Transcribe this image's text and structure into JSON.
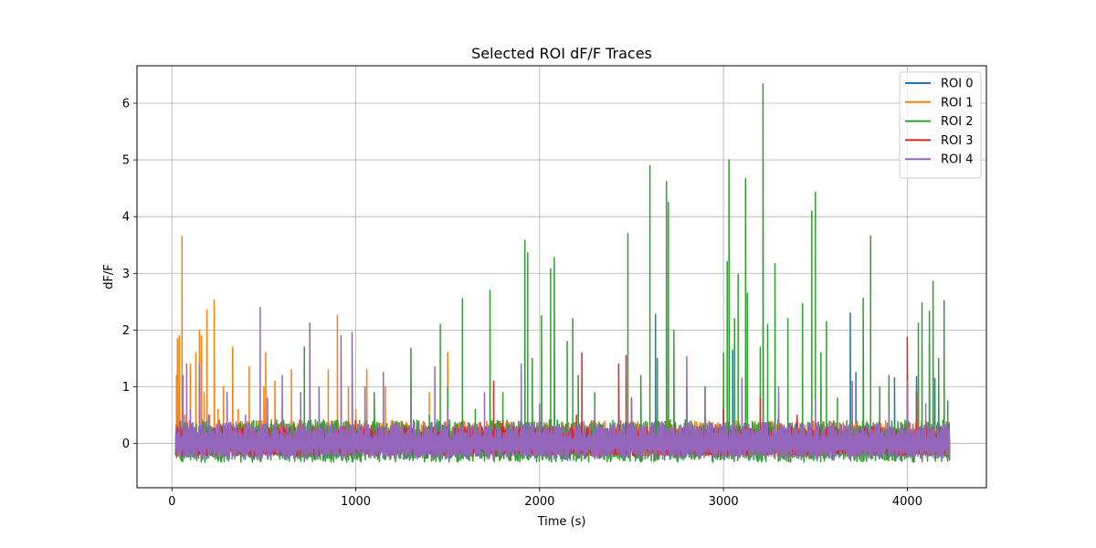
{
  "chart_data": {
    "type": "line",
    "title": "Selected ROI dF/F Traces",
    "xlabel": "Time (s)",
    "ylabel": "dF/F",
    "xlim": [
      -190,
      4430
    ],
    "ylim": [
      -0.78,
      6.66
    ],
    "xticks": [
      0,
      1000,
      2000,
      3000,
      4000
    ],
    "xtick_labels": [
      "0",
      "1000",
      "2000",
      "3000",
      "4000"
    ],
    "yticks": [
      0,
      1,
      2,
      3,
      4,
      5,
      6
    ],
    "ytick_labels": [
      "0",
      "1",
      "2",
      "3",
      "4",
      "5",
      "6"
    ],
    "grid": true,
    "legend_position": "top-right",
    "series": [
      {
        "name": "ROI 0",
        "color": "#1f77b4",
        "points": [
          [
            20,
            0.05
          ],
          [
            120,
            0.2
          ],
          [
            300,
            -0.1
          ],
          [
            500,
            0.15
          ],
          [
            800,
            0.1
          ],
          [
            1100,
            0.2
          ],
          [
            1400,
            0.3
          ],
          [
            1700,
            0.1
          ],
          [
            2000,
            0.25
          ],
          [
            2300,
            0.2
          ],
          [
            2500,
            0.3
          ],
          [
            2630,
            2.28
          ],
          [
            2700,
            0.4
          ],
          [
            2900,
            0.5
          ],
          [
            3000,
            0.74
          ],
          [
            3050,
            1.65
          ],
          [
            3100,
            0.3
          ],
          [
            3300,
            0.6
          ],
          [
            3500,
            0.5
          ],
          [
            3600,
            0.4
          ],
          [
            3690,
            2.3
          ],
          [
            3720,
            1.25
          ],
          [
            3800,
            0.5
          ],
          [
            3930,
            1.16
          ],
          [
            4000,
            0.6
          ],
          [
            4050,
            1.18
          ],
          [
            4120,
            1.75
          ],
          [
            4150,
            1.15
          ],
          [
            4230,
            0.3
          ]
        ]
      },
      {
        "name": "ROI 1",
        "color": "#ff7f0e",
        "points": [
          [
            20,
            0.1
          ],
          [
            25,
            1.2
          ],
          [
            30,
            1.85
          ],
          [
            40,
            1.9
          ],
          [
            55,
            3.65
          ],
          [
            70,
            0.5
          ],
          [
            100,
            1.4
          ],
          [
            130,
            1.6
          ],
          [
            150,
            2.0
          ],
          [
            160,
            1.9
          ],
          [
            175,
            0.9
          ],
          [
            190,
            2.35
          ],
          [
            205,
            0.5
          ],
          [
            230,
            2.53
          ],
          [
            250,
            0.6
          ],
          [
            280,
            1.0
          ],
          [
            330,
            1.7
          ],
          [
            360,
            0.6
          ],
          [
            420,
            1.35
          ],
          [
            470,
            0.4
          ],
          [
            500,
            1.0
          ],
          [
            510,
            1.6
          ],
          [
            520,
            0.3
          ],
          [
            560,
            1.1
          ],
          [
            600,
            0.8
          ],
          [
            650,
            1.3
          ],
          [
            700,
            0.4
          ],
          [
            750,
            0.9
          ],
          [
            800,
            0.5
          ],
          [
            850,
            1.3
          ],
          [
            900,
            2.26
          ],
          [
            960,
            1.0
          ],
          [
            1000,
            0.6
          ],
          [
            1060,
            1.3
          ],
          [
            1100,
            0.5
          ],
          [
            1160,
            1.0
          ],
          [
            1200,
            0.4
          ],
          [
            1300,
            0.7
          ],
          [
            1400,
            0.9
          ],
          [
            1500,
            1.6
          ],
          [
            1600,
            0.3
          ],
          [
            1800,
            0.2
          ],
          [
            2000,
            0.1
          ],
          [
            2400,
            0.2
          ],
          [
            2800,
            0.15
          ],
          [
            3200,
            0.2
          ],
          [
            3600,
            0.15
          ],
          [
            4000,
            0.2
          ],
          [
            4230,
            0.1
          ]
        ]
      },
      {
        "name": "ROI 2",
        "color": "#2ca02c",
        "points": [
          [
            20,
            -0.1
          ],
          [
            100,
            0.2
          ],
          [
            300,
            -0.2
          ],
          [
            500,
            0.1
          ],
          [
            720,
            1.7
          ],
          [
            800,
            0.2
          ],
          [
            1000,
            0.3
          ],
          [
            1100,
            0.9
          ],
          [
            1300,
            1.68
          ],
          [
            1400,
            0.5
          ],
          [
            1460,
            2.1
          ],
          [
            1500,
            1.0
          ],
          [
            1580,
            2.55
          ],
          [
            1650,
            0.6
          ],
          [
            1730,
            2.7
          ],
          [
            1800,
            0.9
          ],
          [
            1920,
            3.58
          ],
          [
            1935,
            3.36
          ],
          [
            1960,
            1.5
          ],
          [
            2010,
            2.25
          ],
          [
            2060,
            3.08
          ],
          [
            2080,
            3.28
          ],
          [
            2150,
            1.8
          ],
          [
            2180,
            2.2
          ],
          [
            2210,
            1.2
          ],
          [
            2300,
            0.9
          ],
          [
            2480,
            3.7
          ],
          [
            2550,
            1.2
          ],
          [
            2600,
            4.9
          ],
          [
            2640,
            1.5
          ],
          [
            2690,
            4.62
          ],
          [
            2700,
            4.25
          ],
          [
            2730,
            2.0
          ],
          [
            2800,
            1.0
          ],
          [
            2900,
            1.0
          ],
          [
            3000,
            1.6
          ],
          [
            3020,
            3.21
          ],
          [
            3030,
            5.0
          ],
          [
            3060,
            2.2
          ],
          [
            3080,
            2.98
          ],
          [
            3120,
            4.67
          ],
          [
            3130,
            2.65
          ],
          [
            3200,
            1.7
          ],
          [
            3215,
            6.34
          ],
          [
            3240,
            2.1
          ],
          [
            3280,
            3.17
          ],
          [
            3350,
            2.2
          ],
          [
            3430,
            2.47
          ],
          [
            3480,
            4.1
          ],
          [
            3500,
            4.43
          ],
          [
            3530,
            1.6
          ],
          [
            3560,
            2.15
          ],
          [
            3620,
            0.8
          ],
          [
            3760,
            2.56
          ],
          [
            3800,
            3.66
          ],
          [
            3850,
            1.0
          ],
          [
            3900,
            1.2
          ],
          [
            4000,
            1.2
          ],
          [
            4060,
            2.12
          ],
          [
            4080,
            2.48
          ],
          [
            4120,
            2.33
          ],
          [
            4140,
            2.86
          ],
          [
            4170,
            1.5
          ],
          [
            4200,
            2.52
          ],
          [
            4220,
            0.75
          ],
          [
            4230,
            0.3
          ]
        ]
      },
      {
        "name": "ROI 3",
        "color": "#d62728",
        "points": [
          [
            20,
            0.0
          ],
          [
            200,
            0.3
          ],
          [
            500,
            0.1
          ],
          [
            800,
            0.2
          ],
          [
            1000,
            0.4
          ],
          [
            1200,
            0.3
          ],
          [
            1500,
            0.2
          ],
          [
            1750,
            1.1
          ],
          [
            1800,
            0.4
          ],
          [
            1900,
            0.9
          ],
          [
            2000,
            0.6
          ],
          [
            2200,
            0.5
          ],
          [
            2230,
            1.6
          ],
          [
            2300,
            0.4
          ],
          [
            2430,
            1.4
          ],
          [
            2470,
            1.55
          ],
          [
            2500,
            0.8
          ],
          [
            2800,
            0.4
          ],
          [
            3000,
            0.6
          ],
          [
            3200,
            0.8
          ],
          [
            3400,
            0.5
          ],
          [
            3700,
            0.4
          ],
          [
            4000,
            1.87
          ],
          [
            4050,
            0.9
          ],
          [
            4100,
            0.4
          ],
          [
            4230,
            0.2
          ]
        ]
      },
      {
        "name": "ROI 4",
        "color": "#9467bd",
        "points": [
          [
            20,
            0.1
          ],
          [
            60,
            1.2
          ],
          [
            80,
            1.4
          ],
          [
            100,
            0.6
          ],
          [
            150,
            1.4
          ],
          [
            200,
            0.5
          ],
          [
            300,
            0.9
          ],
          [
            400,
            0.5
          ],
          [
            480,
            2.4
          ],
          [
            520,
            0.8
          ],
          [
            600,
            1.2
          ],
          [
            700,
            0.9
          ],
          [
            750,
            2.12
          ],
          [
            800,
            1.0
          ],
          [
            920,
            1.9
          ],
          [
            980,
            1.96
          ],
          [
            1050,
            1.0
          ],
          [
            1150,
            1.25
          ],
          [
            1200,
            0.4
          ],
          [
            1300,
            0.8
          ],
          [
            1430,
            1.35
          ],
          [
            1500,
            0.6
          ],
          [
            1700,
            0.9
          ],
          [
            1900,
            1.4
          ],
          [
            2000,
            0.7
          ],
          [
            2300,
            0.6
          ],
          [
            2500,
            0.8
          ],
          [
            2800,
            1.53
          ],
          [
            2900,
            0.9
          ],
          [
            3100,
            1.15
          ],
          [
            3300,
            1.0
          ],
          [
            3500,
            0.8
          ],
          [
            3700,
            1.1
          ],
          [
            3900,
            0.6
          ],
          [
            4000,
            1.1
          ],
          [
            4100,
            0.7
          ],
          [
            4230,
            0.4
          ]
        ]
      }
    ]
  }
}
